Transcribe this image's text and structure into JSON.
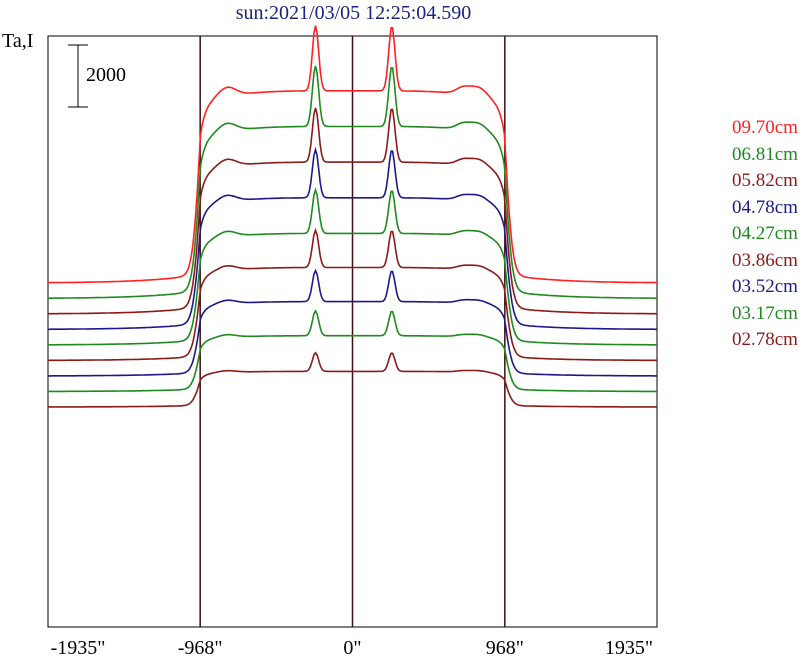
{
  "chart_data": {
    "type": "line",
    "title": "sun:2021/03/05 12:25:04.590",
    "ylabel": "Ta,I",
    "scale_bar_value": "2000",
    "x_ticks": [
      {
        "value": -1935,
        "label": "-1935\""
      },
      {
        "value": -968,
        "label": "-968\""
      },
      {
        "value": 0,
        "label": "0\""
      },
      {
        "value": 968,
        "label": "968\""
      },
      {
        "value": 1935,
        "label": "1935\""
      }
    ],
    "xlim": [
      -1935,
      1935
    ],
    "vertical_lines": [
      -968,
      0,
      968
    ],
    "series": [
      {
        "name": "09.70cm",
        "color": "#ff2020",
        "baseline": 0,
        "disk": 6200,
        "peak": 8300
      },
      {
        "name": "06.81cm",
        "color": "#1f8a1f",
        "baseline": -500,
        "disk": 5550,
        "peak": 7500
      },
      {
        "name": "05.82cm",
        "color": "#8b1a1a",
        "baseline": -1000,
        "disk": 4900,
        "peak": 6650
      },
      {
        "name": "04.78cm",
        "color": "#1a1a8b",
        "baseline": -1500,
        "disk": 4250,
        "peak": 5800
      },
      {
        "name": "04.27cm",
        "color": "#1f8a1f",
        "baseline": -2000,
        "disk": 3600,
        "peak": 5000
      },
      {
        "name": "03.86cm",
        "color": "#8b1a1a",
        "baseline": -2500,
        "disk": 3000,
        "peak": 4200
      },
      {
        "name": "03.52cm",
        "color": "#1a1a8b",
        "baseline": -3000,
        "disk": 2400,
        "peak": 3400
      },
      {
        "name": "03.17cm",
        "color": "#1f8a1f",
        "baseline": -3500,
        "disk": 1800,
        "peak": 2600
      },
      {
        "name": "02.78cm",
        "color": "#8b1a1a",
        "baseline": -4000,
        "disk": 1150,
        "peak": 1750
      }
    ]
  }
}
